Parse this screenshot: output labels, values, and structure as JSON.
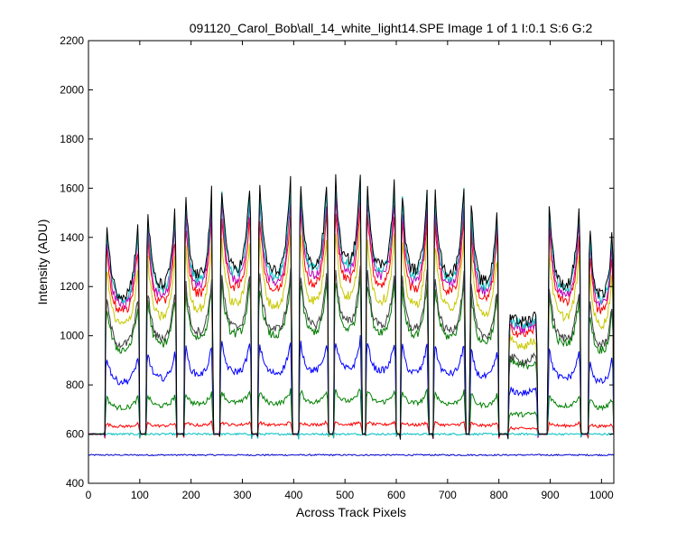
{
  "chart_data": {
    "type": "line",
    "title": "091120_Carol_Bob\\all_14_white_light14.SPE  Image 1 of 1  I:0.1  S:6  G:2",
    "xlabel": "Across Track Pixels",
    "ylabel": "Intensity (ADU)",
    "xlim": [
      0,
      1024
    ],
    "ylim": [
      400,
      2200
    ],
    "xticks": [
      0,
      100,
      200,
      300,
      400,
      500,
      600,
      700,
      800,
      900,
      1000
    ],
    "yticks": [
      400,
      600,
      800,
      1000,
      1200,
      1400,
      1600,
      1800,
      2000,
      2200
    ],
    "grid": false,
    "legend": "none",
    "baseline": 600,
    "segments": [
      {
        "x0": 32,
        "x1": 100,
        "gain": 0.82
      },
      {
        "x0": 112,
        "x1": 172,
        "gain": 0.88
      },
      {
        "x0": 186,
        "x1": 243,
        "gain": 0.94
      },
      {
        "x0": 256,
        "x1": 318,
        "gain": 0.98
      },
      {
        "x0": 330,
        "x1": 397,
        "gain": 0.96
      },
      {
        "x0": 410,
        "x1": 468,
        "gain": 1.0
      },
      {
        "x0": 478,
        "x1": 533,
        "gain": 1.03
      },
      {
        "x0": 540,
        "x1": 600,
        "gain": 1.0
      },
      {
        "x0": 608,
        "x1": 663,
        "gain": 0.97
      },
      {
        "x0": 672,
        "x1": 735,
        "gain": 0.95
      },
      {
        "x0": 743,
        "x1": 800,
        "gain": 0.9
      },
      {
        "x0": 818,
        "x1": 876,
        "gain": 0.48,
        "flat": true
      },
      {
        "x0": 895,
        "x1": 960,
        "gain": 0.88
      },
      {
        "x0": 974,
        "x1": 1024,
        "gain": 0.82
      }
    ],
    "series": [
      {
        "color": "#0000cc",
        "flat_level": 515,
        "noise": 3
      },
      {
        "color": "#00bfbf",
        "flat_level": 600,
        "noise": 4
      },
      {
        "color": "#ff0000",
        "level": 650,
        "dip": 0.3,
        "noise": 6
      },
      {
        "color": "#008000",
        "level": 780,
        "dip": 0.35,
        "noise": 10
      },
      {
        "color": "#0000ff",
        "level": 980,
        "dip": 0.4,
        "noise": 14
      },
      {
        "color": "#007a00",
        "level": 1230,
        "dip": 0.42,
        "noise": 18
      },
      {
        "color": "#404040",
        "level": 1270,
        "dip": 0.42,
        "noise": 18
      },
      {
        "color": "#c8c800",
        "level": 1420,
        "dip": 0.42,
        "noise": 20
      },
      {
        "color": "#ff0000",
        "level": 1520,
        "dip": 0.42,
        "noise": 20
      },
      {
        "color": "#bf00bf",
        "level": 1570,
        "dip": 0.42,
        "noise": 20
      },
      {
        "color": "#00bfbf",
        "level": 1610,
        "dip": 0.42,
        "noise": 22
      },
      {
        "color": "#000000",
        "level": 1640,
        "dip": 0.42,
        "noise": 24
      }
    ]
  }
}
